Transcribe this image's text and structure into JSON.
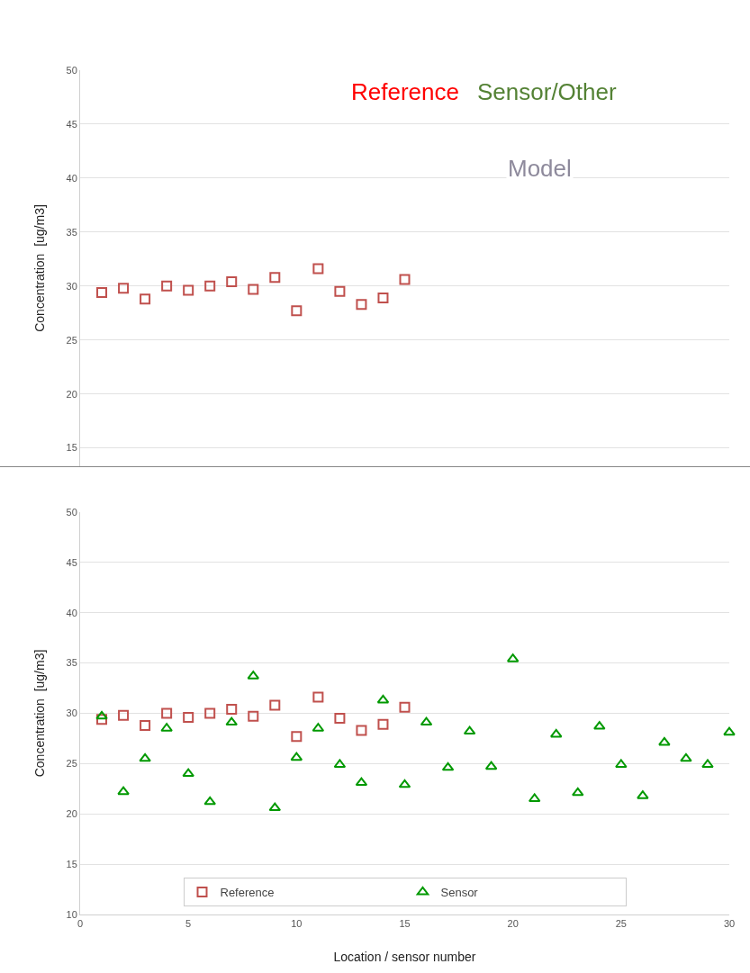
{
  "chart_data": [
    {
      "type": "scatter",
      "annotations": [
        "Reference",
        "Sensor/Other",
        "Model"
      ],
      "ylabel": "Concentration  [ug/m3]",
      "x": [
        1,
        2,
        3,
        4,
        5,
        6,
        7,
        8,
        9,
        10,
        11,
        12,
        13,
        14,
        15
      ],
      "series": [
        {
          "color": "#c0504d",
          "marker": "square",
          "values": [
            29.4,
            29.8,
            28.8,
            30.0,
            29.6,
            30.0,
            30.4,
            29.7,
            30.8,
            27.7,
            31.6,
            29.5,
            28.3,
            28.9,
            30.6
          ]
        }
      ],
      "xlim": [
        0,
        30
      ],
      "ylim": [
        13.3,
        50
      ],
      "yticks": [
        15,
        20,
        25,
        30,
        35,
        40,
        45,
        50
      ],
      "grid": "y",
      "legend": false,
      "tick_labels": "y"
    },
    {
      "type": "scatter",
      "xlabel": "Location / sensor number",
      "ylabel": "Concentration  [ug/m3]",
      "series": [
        {
          "name": "Reference",
          "color": "#c0504d",
          "marker": "square",
          "x": [
            1,
            2,
            3,
            4,
            5,
            6,
            7,
            8,
            9,
            10,
            11,
            12,
            13,
            14,
            15
          ],
          "values": [
            29.4,
            29.8,
            28.8,
            30.0,
            29.6,
            30.0,
            30.4,
            29.7,
            30.8,
            27.7,
            31.6,
            29.5,
            28.3,
            28.9,
            30.6
          ]
        },
        {
          "name": "Sensor",
          "color": "#009900",
          "marker": "triangle",
          "x": [
            1,
            2,
            3,
            4,
            5,
            6,
            7,
            8,
            9,
            10,
            11,
            12,
            13,
            14,
            15,
            16,
            17,
            18,
            19,
            20,
            21,
            22,
            23,
            24,
            25,
            26,
            27,
            28,
            29,
            30
          ],
          "values": [
            29.7,
            22.2,
            25.5,
            28.5,
            24.0,
            21.2,
            29.1,
            33.7,
            20.6,
            25.6,
            28.5,
            24.9,
            23.1,
            31.3,
            22.9,
            29.1,
            24.6,
            28.2,
            24.7,
            35.4,
            21.5,
            27.9,
            22.1,
            28.7,
            24.9,
            21.8,
            27.1,
            25.5,
            24.9,
            28.1
          ]
        }
      ],
      "xlim": [
        0,
        30
      ],
      "xticks": [
        0,
        5,
        10,
        15,
        20,
        25,
        30
      ],
      "ylim": [
        10,
        50
      ],
      "yticks": [
        10,
        15,
        20,
        25,
        30,
        35,
        40,
        45,
        50
      ],
      "grid": "y",
      "legend": "bottom"
    }
  ]
}
